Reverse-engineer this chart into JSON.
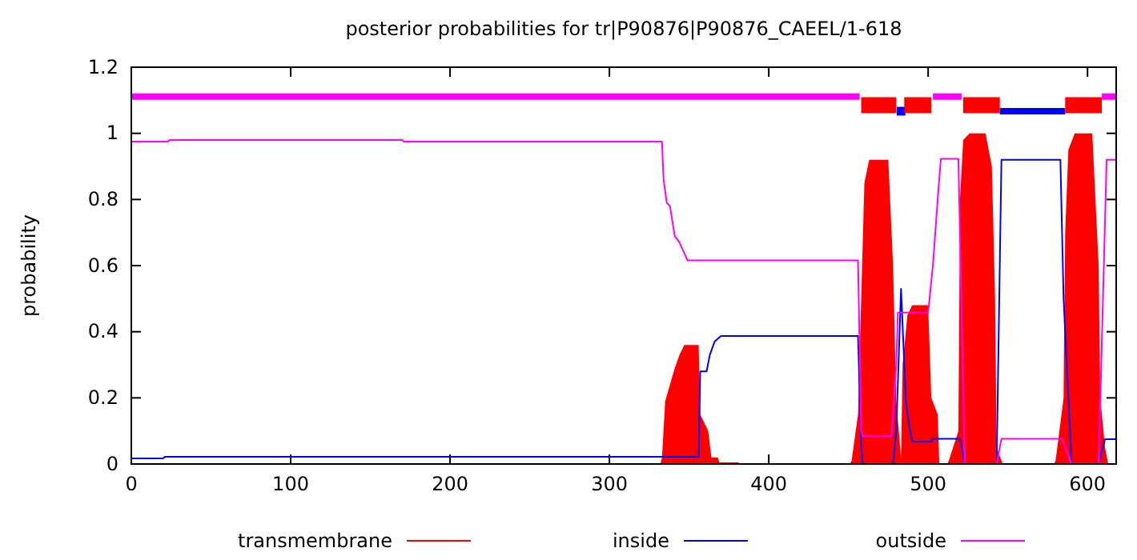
{
  "chart_data": {
    "type": "line",
    "title": "posterior probabilities for tr|P90876|P90876_CAEEL/1-618",
    "ylabel": "probability",
    "xlim": [
      0,
      618
    ],
    "xticks": [
      0,
      100,
      200,
      300,
      400,
      500,
      600
    ],
    "ylim": [
      0,
      1.2
    ],
    "yticks": [
      0,
      0.2,
      0.4,
      0.6,
      0.8,
      1,
      1.2
    ],
    "legend": "bottom",
    "grid": false,
    "series": [
      {
        "name": "transmembrane",
        "type": "area",
        "color": "#ff0000",
        "x": [
          0,
          332,
          333,
          335,
          341,
          344,
          347,
          356,
          357,
          362,
          364,
          368,
          369,
          381,
          382,
          451,
          452,
          456,
          458,
          460,
          463,
          475,
          478,
          480,
          483,
          484,
          487,
          490,
          500,
          502,
          506,
          507,
          512,
          513,
          519,
          520,
          522,
          526,
          536,
          540,
          542,
          543,
          546,
          547,
          579,
          580,
          585,
          586,
          588,
          592,
          603,
          607,
          608,
          611,
          613,
          618
        ],
        "values": [
          0,
          0,
          0.02,
          0.19,
          0.29,
          0.33,
          0.36,
          0.36,
          0.15,
          0.1,
          0.02,
          0.02,
          0.005,
          0.005,
          0,
          0,
          0.01,
          0.15,
          0.5,
          0.85,
          0.92,
          0.92,
          0.6,
          0.19,
          0.02,
          0.3,
          0.45,
          0.48,
          0.48,
          0.2,
          0.15,
          0,
          0,
          0.01,
          0.1,
          0.8,
          0.98,
          1,
          1,
          0.9,
          0.5,
          0.05,
          0.01,
          0,
          0,
          0.01,
          0.2,
          0.7,
          0.95,
          1,
          1,
          0.6,
          0.2,
          0.05,
          0,
          0
        ]
      },
      {
        "name": "inside",
        "color": "#0000ff",
        "x": [
          0,
          20,
          21,
          356,
          357,
          361,
          363,
          366,
          370,
          456,
          458,
          459,
          478,
          480,
          483,
          486,
          488,
          490,
          502,
          503,
          520,
          523,
          543,
          546,
          583,
          585,
          590,
          607,
          611,
          618
        ],
        "values": [
          0.017,
          0.017,
          0.022,
          0.022,
          0.28,
          0.28,
          0.33,
          0.37,
          0.387,
          0.387,
          0.05,
          0,
          0,
          0.1,
          0.53,
          0.19,
          0.12,
          0.068,
          0.068,
          0.076,
          0.076,
          0,
          0,
          0.92,
          0.92,
          0.5,
          0,
          0,
          0.075,
          0.075
        ]
      },
      {
        "name": "outside",
        "color": "#ff00ff",
        "x": [
          0,
          23,
          24,
          170,
          171,
          333,
          334,
          336,
          338,
          341,
          344,
          349,
          456,
          458,
          459,
          477,
          480,
          481,
          500,
          503,
          506,
          508,
          519,
          523,
          543,
          546,
          584,
          590,
          607,
          612,
          618
        ],
        "values": [
          0.975,
          0.975,
          0.98,
          0.98,
          0.975,
          0.975,
          0.86,
          0.79,
          0.78,
          0.69,
          0.67,
          0.616,
          0.616,
          0.1,
          0.084,
          0.084,
          0.3,
          0.458,
          0.458,
          0.6,
          0.8,
          0.923,
          0.923,
          0,
          0,
          0.076,
          0.076,
          0,
          0,
          0.92,
          0.92
        ]
      },
      {
        "color": "#ff00ff",
        "x": [
          0,
          457,
          457.5,
          503,
          521,
          521.5,
          609,
          618
        ],
        "values": [
          1.111,
          1.111,
          null,
          1.111,
          1.111,
          null,
          1.111,
          1.111
        ]
      },
      {
        "color": "#0000ff",
        "x": [
          545,
          586
        ],
        "values": [
          1.067,
          1.067
        ]
      },
      {
        "type": "scatter",
        "marker": "square",
        "color": "#0000ff",
        "x": [
          483
        ],
        "values": [
          1.067
        ]
      },
      {
        "color": "#ff0000",
        "x": [
          458,
          480,
          482,
          485,
          502,
          510,
          522,
          545,
          560,
          586,
          609
        ],
        "values": [
          1.085,
          1.085,
          null,
          1.085,
          1.085,
          null,
          1.085,
          1.085,
          null,
          1.085,
          1.085
        ]
      }
    ]
  }
}
